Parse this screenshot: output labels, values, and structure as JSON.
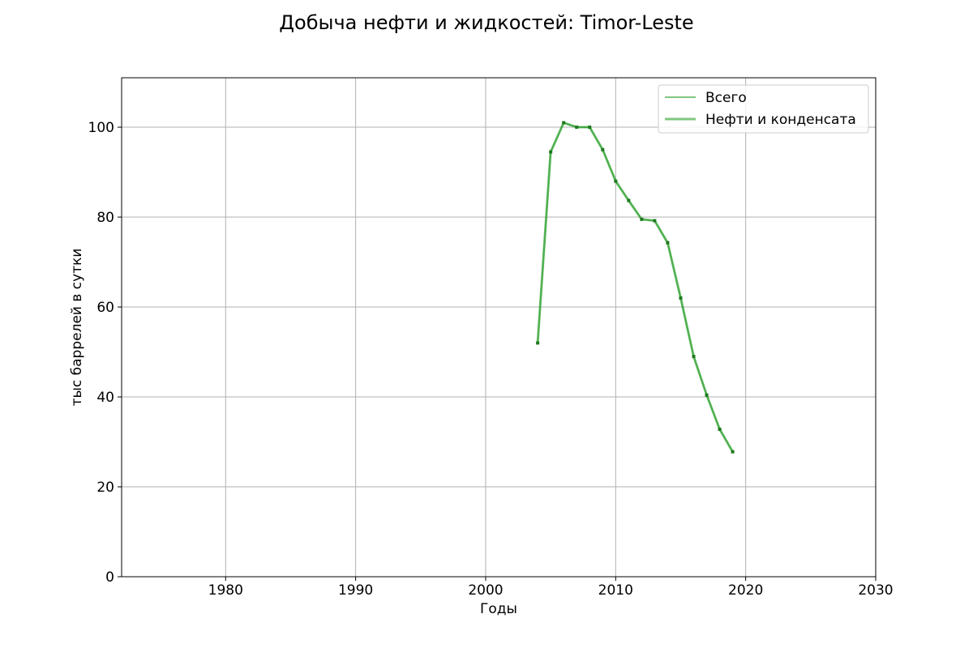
{
  "chart_data": {
    "type": "line",
    "title": "Добыча нефти и жидкостей: Timor-Leste",
    "xlabel": "Годы",
    "ylabel": "тыс баррелей в сутки",
    "xlim": [
      1972,
      2030
    ],
    "ylim": [
      0,
      111
    ],
    "xticks": [
      1980,
      1990,
      2000,
      2010,
      2020,
      2030
    ],
    "yticks": [
      0,
      20,
      40,
      60,
      80,
      100
    ],
    "grid": true,
    "legend_position": "top-right",
    "x": [
      2004,
      2005,
      2006,
      2007,
      2008,
      2009,
      2010,
      2011,
      2012,
      2013,
      2014,
      2015,
      2016,
      2017,
      2018,
      2019
    ],
    "series": [
      {
        "name": "Всего",
        "color": "#2ca02c",
        "values": [
          52.0,
          94.5,
          101.0,
          100.0,
          100.0,
          95.0,
          88.0,
          83.7,
          79.5,
          79.2,
          74.3,
          62.0,
          49.0,
          40.4,
          32.8,
          27.8
        ]
      },
      {
        "name": "Нефти и конденсата",
        "color": "#2ca02c",
        "values": [
          52.0,
          94.5,
          101.0,
          100.0,
          100.0,
          95.0,
          88.0,
          83.7,
          79.5,
          79.2,
          74.3,
          62.0,
          49.0,
          40.4,
          32.8,
          27.8
        ]
      }
    ]
  }
}
